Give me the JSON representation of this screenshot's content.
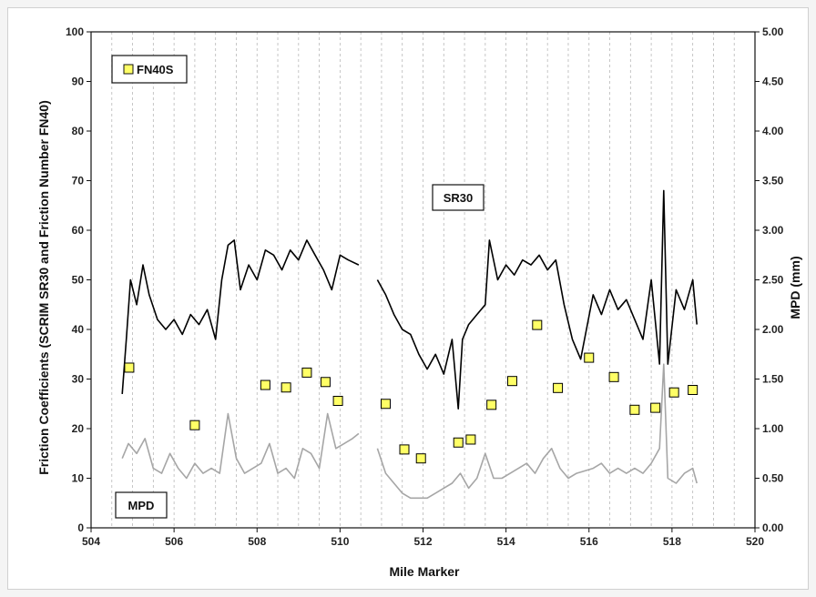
{
  "chart_data": {
    "type": "line",
    "xlabel": "Mile Marker",
    "ylabel_left": "Friction Coefficients (SCRIM SR30 and Friction Number FN40)",
    "ylabel_right": "MPD (mm)",
    "xlim": [
      504,
      520
    ],
    "ylim_left": [
      0,
      100
    ],
    "ylim_right": [
      0,
      5
    ],
    "x_ticks": [
      "504",
      "506",
      "508",
      "510",
      "512",
      "514",
      "516",
      "518",
      "520"
    ],
    "y_ticks_left": [
      "0",
      "10",
      "20",
      "30",
      "40",
      "50",
      "60",
      "70",
      "80",
      "90",
      "100"
    ],
    "y_ticks_right": [
      "0.00",
      "0.50",
      "1.00",
      "1.50",
      "2.00",
      "2.50",
      "3.00",
      "3.50",
      "4.00",
      "4.50",
      "5.00"
    ],
    "grid": "vertical dashed",
    "colors": {
      "sr30": "#000000",
      "mpd": "#a6a6a6",
      "fn40s_fill": "#ffff66",
      "fn40s_edge": "#000000"
    },
    "annotations": [
      {
        "text": "FN40S",
        "position": "top-left legend box"
      },
      {
        "text": "SR30",
        "position": "center label box"
      },
      {
        "text": "MPD",
        "position": "bottom-left label box"
      }
    ],
    "series": [
      {
        "name": "SR30",
        "axis": "left",
        "x": [
          504.75,
          504.85,
          504.95,
          505.1,
          505.25,
          505.4,
          505.6,
          505.8,
          506.0,
          506.2,
          506.4,
          506.6,
          506.8,
          507.0,
          507.15,
          507.3,
          507.45,
          507.6,
          507.8,
          508.0,
          508.2,
          508.4,
          508.6,
          508.8,
          509.0,
          509.2,
          509.4,
          509.6,
          509.8,
          510.0,
          510.2,
          510.45,
          510.9,
          511.1,
          511.3,
          511.5,
          511.7,
          511.9,
          512.1,
          512.3,
          512.5,
          512.7,
          512.85,
          512.95,
          513.1,
          513.3,
          513.5,
          513.6,
          513.8,
          514.0,
          514.2,
          514.4,
          514.6,
          514.8,
          515.0,
          515.2,
          515.4,
          515.6,
          515.8,
          516.1,
          516.3,
          516.5,
          516.7,
          516.9,
          517.1,
          517.3,
          517.5,
          517.7,
          517.8,
          517.9,
          518.1,
          518.3,
          518.5,
          518.6
        ],
        "y": [
          27,
          38,
          50,
          45,
          53,
          47,
          42,
          40,
          42,
          39,
          43,
          41,
          44,
          38,
          50,
          57,
          58,
          48,
          53,
          50,
          56,
          55,
          52,
          56,
          54,
          58,
          55,
          52,
          48,
          55,
          54,
          53,
          50,
          47,
          43,
          40,
          39,
          35,
          32,
          35,
          31,
          38,
          24,
          38,
          41,
          43,
          45,
          58,
          50,
          53,
          51,
          54,
          53,
          55,
          52,
          54,
          45,
          38,
          34,
          47,
          43,
          48,
          44,
          46,
          42,
          38,
          50,
          33,
          68,
          33,
          48,
          44,
          50,
          41
        ]
      },
      {
        "name": "MPD",
        "axis": "right",
        "x": [
          504.75,
          504.9,
          505.1,
          505.3,
          505.5,
          505.7,
          505.9,
          506.1,
          506.3,
          506.5,
          506.7,
          506.9,
          507.1,
          507.3,
          507.5,
          507.7,
          507.9,
          508.1,
          508.3,
          508.5,
          508.7,
          508.9,
          509.1,
          509.3,
          509.5,
          509.7,
          509.9,
          510.1,
          510.3,
          510.45,
          510.9,
          511.1,
          511.3,
          511.5,
          511.7,
          511.9,
          512.1,
          512.3,
          512.5,
          512.7,
          512.9,
          513.1,
          513.3,
          513.5,
          513.7,
          513.9,
          514.1,
          514.3,
          514.5,
          514.7,
          514.9,
          515.1,
          515.3,
          515.5,
          515.7,
          516.1,
          516.3,
          516.5,
          516.7,
          516.9,
          517.1,
          517.3,
          517.5,
          517.7,
          517.8,
          517.9,
          518.1,
          518.3,
          518.5,
          518.6
        ],
        "y": [
          0.7,
          0.85,
          0.75,
          0.9,
          0.6,
          0.55,
          0.75,
          0.6,
          0.5,
          0.65,
          0.55,
          0.6,
          0.55,
          1.15,
          0.7,
          0.55,
          0.6,
          0.65,
          0.85,
          0.55,
          0.6,
          0.5,
          0.8,
          0.75,
          0.6,
          1.15,
          0.8,
          0.85,
          0.9,
          0.95,
          0.8,
          0.55,
          0.45,
          0.35,
          0.3,
          0.3,
          0.3,
          0.35,
          0.4,
          0.45,
          0.55,
          0.4,
          0.5,
          0.75,
          0.5,
          0.5,
          0.55,
          0.6,
          0.65,
          0.55,
          0.7,
          0.8,
          0.6,
          0.5,
          0.55,
          0.6,
          0.65,
          0.55,
          0.6,
          0.55,
          0.6,
          0.55,
          0.65,
          0.8,
          1.65,
          0.5,
          0.45,
          0.55,
          0.6,
          0.45
        ]
      },
      {
        "name": "FN40S",
        "axis": "left",
        "style": "markers",
        "x": [
          504.92,
          506.5,
          508.2,
          508.7,
          509.2,
          509.65,
          509.95,
          511.1,
          511.55,
          511.95,
          512.85,
          513.15,
          513.65,
          514.15,
          514.75,
          515.25,
          516.0,
          516.6,
          517.1,
          517.6,
          518.05,
          518.5
        ],
        "y": [
          32.3,
          20.7,
          28.8,
          28.3,
          31.3,
          29.4,
          25.6,
          25.0,
          15.8,
          14.0,
          17.2,
          17.8,
          24.8,
          29.6,
          40.9,
          28.2,
          34.3,
          30.4,
          23.8,
          24.2,
          27.3,
          27.8
        ]
      }
    ]
  }
}
